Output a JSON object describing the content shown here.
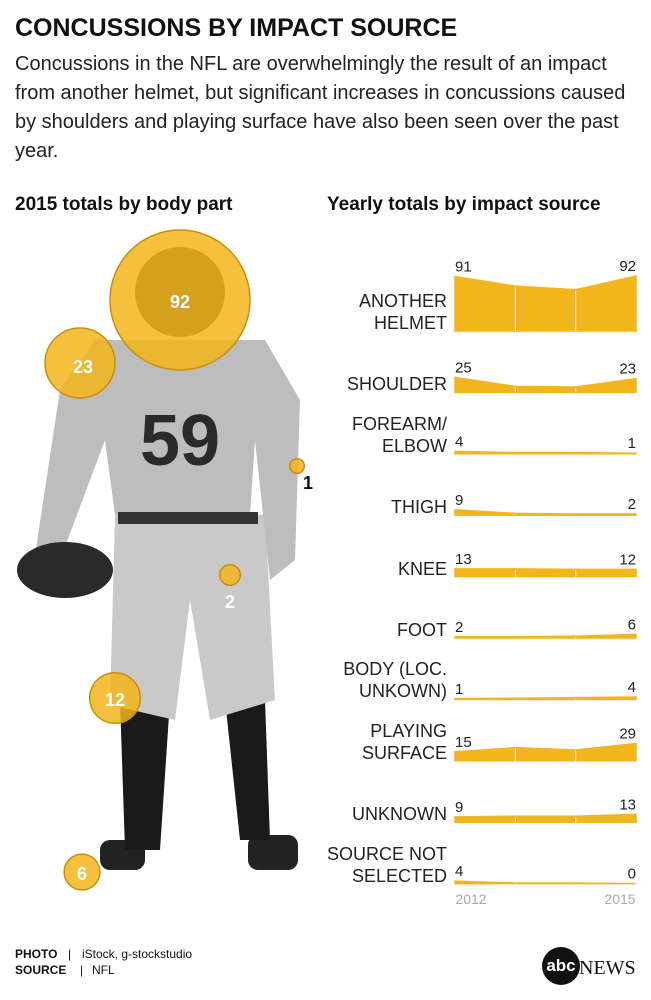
{
  "header": {
    "title": "CONCUSSIONS BY IMPACT SOURCE",
    "subtitle": "Concussions in the NFL are overwhelmingly the result of an impact from another helmet, but significant increases in concussions caused by shoulders and playing surface have also been seen over the past year."
  },
  "jersey_number": "59",
  "chart_data": [
    {
      "type": "bubble",
      "title": "2015 totals by body part",
      "values": [
        92,
        23,
        1,
        2,
        12,
        6
      ],
      "color": "#f2b51c"
    },
    {
      "type": "area",
      "title": "Yearly totals by impact source",
      "categories": [
        "2012",
        null,
        null,
        "2015"
      ],
      "ylim": [
        0,
        92
      ],
      "color": "#f2b51c",
      "series": [
        {
          "name": "ANOTHER\nHELMET",
          "values": [
            91,
            75,
            69,
            92
          ]
        },
        {
          "name": "SHOULDER",
          "values": [
            25,
            10,
            9,
            23
          ]
        },
        {
          "name": "FOREARM/\nELBOW",
          "values": [
            4,
            2,
            2,
            1
          ]
        },
        {
          "name": "THIGH",
          "values": [
            9,
            3,
            2,
            2
          ]
        },
        {
          "name": "KNEE",
          "values": [
            13,
            13,
            12,
            12
          ]
        },
        {
          "name": "FOOT",
          "values": [
            2,
            2,
            3,
            6
          ]
        },
        {
          "name": "BODY (LOC.\nUNKOWN)",
          "values": [
            1,
            2,
            3,
            4
          ]
        },
        {
          "name": "PLAYING\nSURFACE",
          "values": [
            15,
            22,
            18,
            29
          ]
        },
        {
          "name": "UNKNOWN",
          "values": [
            9,
            10,
            10,
            13
          ]
        },
        {
          "name": "SOURCE NOT\nSELECTED",
          "values": [
            4,
            1,
            1,
            0
          ]
        }
      ]
    }
  ],
  "footer": {
    "credits": [
      {
        "label": "PHOTO",
        "text": "iStock, g-stockstudio"
      },
      {
        "label": "SOURCE",
        "text": "NFL"
      }
    ],
    "logo": {
      "mark": "abc",
      "text": "NEWS"
    }
  }
}
